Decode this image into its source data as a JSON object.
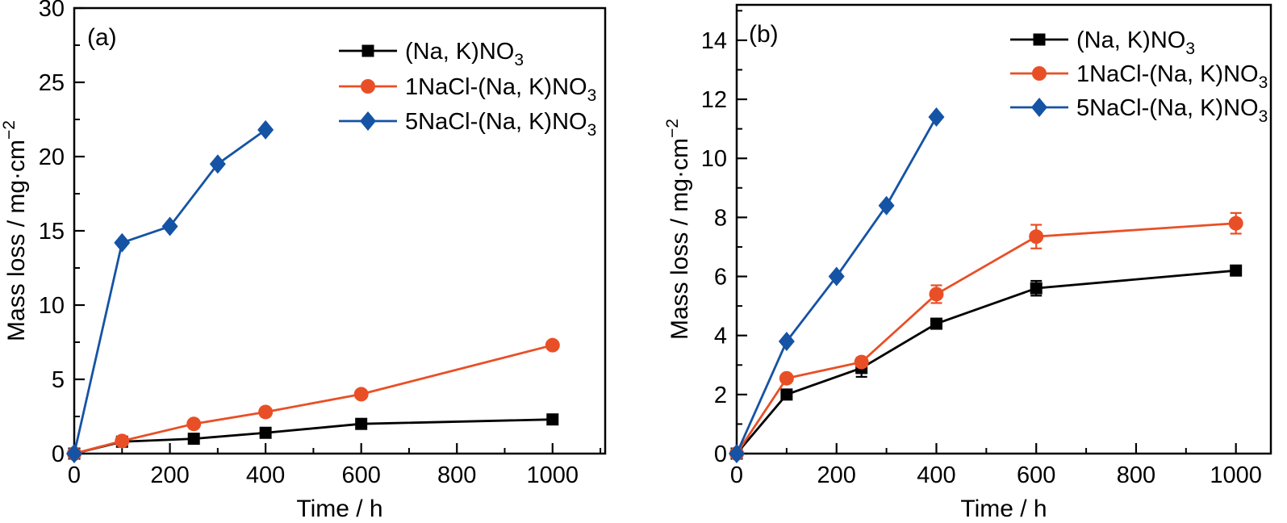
{
  "figure": {
    "background": "#ffffff"
  },
  "colors": {
    "axis": "#000000",
    "series_black": "#000000",
    "series_orange": "#E94F26",
    "series_blue": "#1553A5"
  },
  "chart_data": [
    {
      "panel_label": "(a)",
      "type": "line",
      "xlabel": "Time / h",
      "ylabel_text": "Mass loss / mg·cm",
      "ylabel_sup": "−2",
      "xlim": [
        0,
        1110
      ],
      "ylim": [
        0,
        30
      ],
      "x_major_ticks": [
        0,
        200,
        400,
        600,
        800,
        1000
      ],
      "x_minor_step": 100,
      "y_major_ticks": [
        0,
        5,
        10,
        15,
        20,
        25,
        30
      ],
      "y_minor_step": 2.5,
      "grid": false,
      "legend_position": "top-right-inside",
      "series": [
        {
          "name_text": "(Na, K)NO",
          "name_sub": "3",
          "marker": "square",
          "color": "#000000",
          "x": [
            0,
            100,
            250,
            400,
            600,
            1000
          ],
          "y": [
            0,
            0.8,
            1.0,
            1.4,
            2.0,
            2.3
          ],
          "yerr": [
            0,
            0,
            0,
            0,
            0,
            0
          ]
        },
        {
          "name_text": "1NaCl-(Na, K)NO",
          "name_sub": "3",
          "marker": "circle",
          "color": "#E94F26",
          "x": [
            0,
            100,
            250,
            400,
            600,
            1000
          ],
          "y": [
            0,
            0.85,
            2.0,
            2.8,
            4.0,
            7.3
          ],
          "yerr": [
            0,
            0.15,
            0,
            0,
            0,
            0.25
          ]
        },
        {
          "name_text": "5NaCl-(Na, K)NO",
          "name_sub": "3",
          "marker": "diamond",
          "color": "#1553A5",
          "x": [
            0,
            100,
            200,
            300,
            400
          ],
          "y": [
            0,
            14.2,
            15.3,
            19.5,
            21.8
          ],
          "yerr": [
            0,
            0,
            0,
            0,
            0
          ]
        }
      ]
    },
    {
      "panel_label": "(b)",
      "type": "line",
      "xlabel": "Time / h",
      "ylabel_text": "Mass loss / mg·cm",
      "ylabel_sup": "−2",
      "xlim": [
        0,
        1070
      ],
      "ylim": [
        0,
        15.2
      ],
      "x_major_ticks": [
        0,
        200,
        400,
        600,
        800,
        1000
      ],
      "x_minor_step": 100,
      "y_major_ticks": [
        0,
        2,
        4,
        6,
        8,
        10,
        12,
        14
      ],
      "y_minor_step": 1,
      "grid": false,
      "legend_position": "top-right-inside",
      "series": [
        {
          "name_text": "(Na, K)NO",
          "name_sub": "3",
          "marker": "square",
          "color": "#000000",
          "x": [
            0,
            100,
            250,
            400,
            600,
            1000
          ],
          "y": [
            0,
            2.0,
            2.9,
            4.4,
            5.6,
            6.2
          ],
          "yerr": [
            0,
            0,
            0.3,
            0,
            0.25,
            0
          ]
        },
        {
          "name_text": "1NaCl-(Na, K)NO",
          "name_sub": "3",
          "marker": "circle",
          "color": "#E94F26",
          "x": [
            0,
            100,
            250,
            400,
            600,
            1000
          ],
          "y": [
            0,
            2.55,
            3.1,
            5.4,
            7.35,
            7.8
          ],
          "yerr": [
            0,
            0.1,
            0.15,
            0.3,
            0.4,
            0.35
          ]
        },
        {
          "name_text": "5NaCl-(Na, K)NO",
          "name_sub": "3",
          "marker": "diamond",
          "color": "#1553A5",
          "x": [
            0,
            100,
            200,
            300,
            400
          ],
          "y": [
            0,
            3.8,
            6.0,
            8.4,
            11.4
          ],
          "yerr": [
            0,
            0,
            0,
            0,
            0
          ]
        }
      ]
    }
  ]
}
